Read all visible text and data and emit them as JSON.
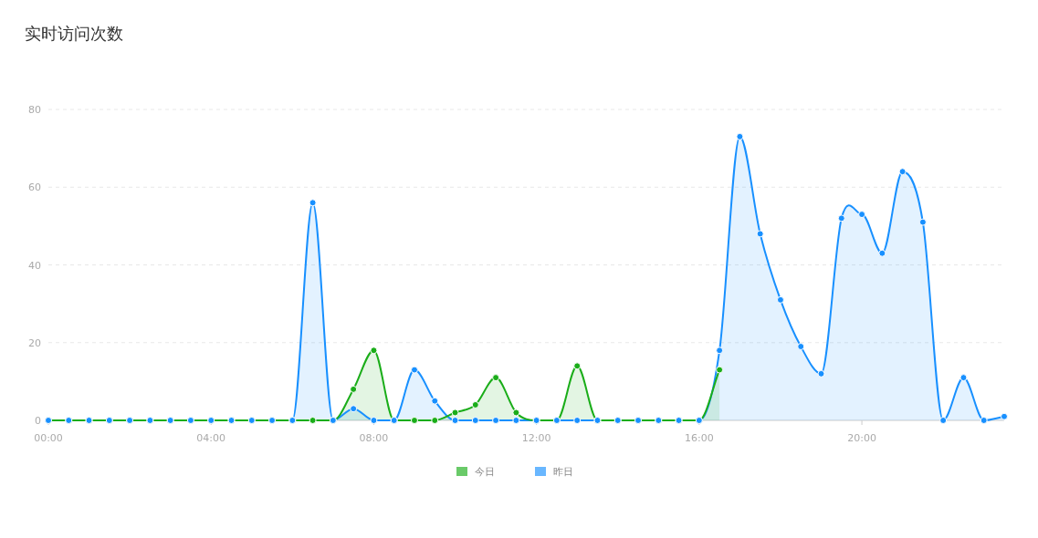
{
  "chart_data": {
    "type": "area",
    "title": "实时访问次数",
    "x": [
      0,
      0.5,
      1,
      1.5,
      2,
      2.5,
      3,
      3.5,
      4,
      4.5,
      5,
      5.5,
      6,
      6.5,
      7,
      7.5,
      8,
      8.5,
      9,
      9.5,
      10,
      10.5,
      11,
      11.5,
      12,
      12.5,
      13,
      13.5,
      14,
      14.5,
      15,
      15.5,
      16,
      16.5,
      17,
      17.5,
      18,
      18.5,
      19,
      19.5,
      20,
      20.5,
      21,
      21.5,
      22,
      22.5,
      23,
      23.5
    ],
    "series": [
      {
        "name": "今日",
        "color": "#1aad19",
        "values": [
          0,
          0,
          0,
          0,
          0,
          0,
          0,
          0,
          0,
          0,
          0,
          0,
          0,
          0,
          0,
          8,
          18,
          0,
          0,
          0,
          2,
          4,
          11,
          2,
          0,
          0,
          14,
          0,
          0,
          0,
          0,
          0,
          0,
          13,
          null,
          null,
          null,
          null,
          null,
          null,
          null,
          null,
          null,
          null,
          null,
          null,
          null,
          null
        ]
      },
      {
        "name": "昨日",
        "color": "#1890ff",
        "values": [
          0,
          0,
          0,
          0,
          0,
          0,
          0,
          0,
          0,
          0,
          0,
          0,
          0,
          56,
          0,
          3,
          0,
          0,
          13,
          5,
          0,
          0,
          0,
          0,
          0,
          0,
          0,
          0,
          0,
          0,
          0,
          0,
          0,
          18,
          73,
          48,
          31,
          19,
          12,
          52,
          53,
          43,
          64,
          51,
          0,
          11,
          0,
          1
        ]
      }
    ],
    "xlim": [
      0,
      23.5
    ],
    "xticks": [
      {
        "value": 0,
        "label": "00:00"
      },
      {
        "value": 4,
        "label": "04:00"
      },
      {
        "value": 8,
        "label": "08:00"
      },
      {
        "value": 12,
        "label": "12:00"
      },
      {
        "value": 16,
        "label": "16:00"
      },
      {
        "value": 20,
        "label": "20:00"
      }
    ],
    "ylim": [
      0,
      80
    ],
    "yticks": [
      0,
      20,
      40,
      60,
      80
    ],
    "grid": "y",
    "legend": "bottom",
    "marker": "circle",
    "line_style": "solid"
  }
}
